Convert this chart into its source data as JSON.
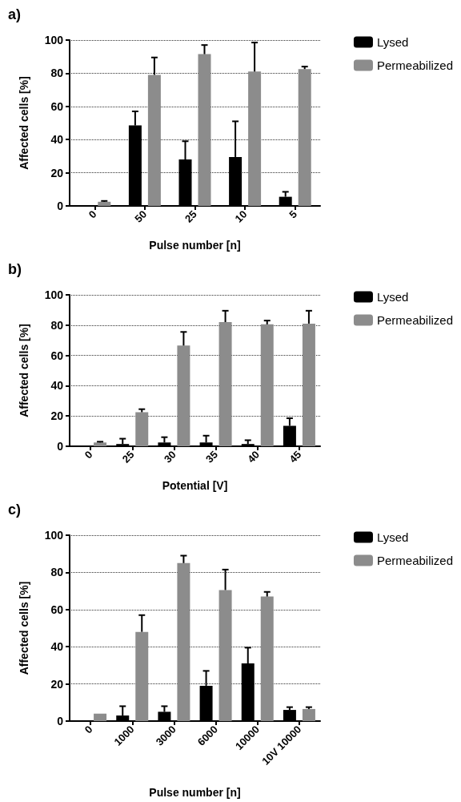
{
  "chart_data": [
    {
      "type": "bar",
      "title": "a)",
      "xlabel": "Pulse number [n]",
      "ylabel": "Affected cells [%]",
      "categories": [
        "0",
        "50",
        "25",
        "10",
        "5"
      ],
      "series": [
        {
          "name": "Lysed",
          "color": "#000000",
          "values": [
            0,
            48.5,
            28,
            29.5,
            5.5
          ],
          "errors": [
            null,
            [
              48.5,
              57
            ],
            [
              28,
              39
            ],
            [
              29.5,
              51
            ],
            [
              5.5,
              8.5
            ]
          ]
        },
        {
          "name": "Permeabilized",
          "color": "#8c8c8c",
          "values": [
            2.5,
            79,
            91.5,
            81,
            82.5
          ],
          "errors": [
            [
              2.5,
              3
            ],
            [
              79,
              89.5
            ],
            [
              91.5,
              97
            ],
            [
              81,
              98.5
            ],
            [
              82.5,
              84
            ]
          ]
        }
      ],
      "ylim": [
        0,
        100
      ],
      "yticks": [
        0,
        20,
        40,
        60,
        80,
        100
      ],
      "grid": "y",
      "legend": "right"
    },
    {
      "type": "bar",
      "title": "b)",
      "xlabel": "Potential [V]",
      "ylabel": "Affected cells [%]",
      "categories": [
        "0",
        "25",
        "30",
        "35",
        "40",
        "45"
      ],
      "series": [
        {
          "name": "Lysed",
          "color": "#000000",
          "values": [
            0,
            1.5,
            2.5,
            2.5,
            1.5,
            13.5
          ],
          "errors": [
            null,
            [
              1.5,
              5
            ],
            [
              2.5,
              6
            ],
            [
              2.5,
              7
            ],
            [
              1.5,
              4
            ],
            [
              13.5,
              18.5
            ]
          ]
        },
        {
          "name": "Permeabilized",
          "color": "#8c8c8c",
          "values": [
            2.5,
            22.5,
            66.5,
            82,
            80.5,
            81
          ],
          "errors": [
            [
              2.5,
              3
            ],
            [
              22.5,
              24.5
            ],
            [
              66.5,
              75.5
            ],
            [
              82,
              89.5
            ],
            [
              80.5,
              83
            ],
            [
              81,
              89.5
            ]
          ]
        }
      ],
      "ylim": [
        0,
        100
      ],
      "yticks": [
        0,
        20,
        40,
        60,
        80,
        100
      ],
      "grid": "y",
      "legend": "right"
    },
    {
      "type": "bar",
      "title": "c)",
      "xlabel": "Pulse number [n]",
      "ylabel": "Affected cells [%]",
      "categories": [
        "0",
        "1000",
        "3000",
        "6000",
        "10000",
        "10V 10000"
      ],
      "series": [
        {
          "name": "Lysed",
          "color": "#000000",
          "values": [
            0,
            3,
            5,
            19,
            31,
            6
          ],
          "errors": [
            null,
            [
              3,
              8
            ],
            [
              5,
              8
            ],
            [
              19,
              27
            ],
            [
              31,
              39.5
            ],
            [
              6,
              7.5
            ]
          ]
        },
        {
          "name": "Permeabilized",
          "color": "#8c8c8c",
          "values": [
            4,
            48,
            85,
            70.5,
            67,
            6.5
          ],
          "errors": [
            null,
            [
              48,
              57
            ],
            [
              85,
              89
            ],
            [
              70.5,
              81.5
            ],
            [
              67,
              69.5
            ],
            [
              6.5,
              7.5
            ]
          ]
        }
      ],
      "ylim": [
        0,
        100
      ],
      "yticks": [
        0,
        20,
        40,
        60,
        80,
        100
      ],
      "grid": "y",
      "legend": "right"
    }
  ]
}
